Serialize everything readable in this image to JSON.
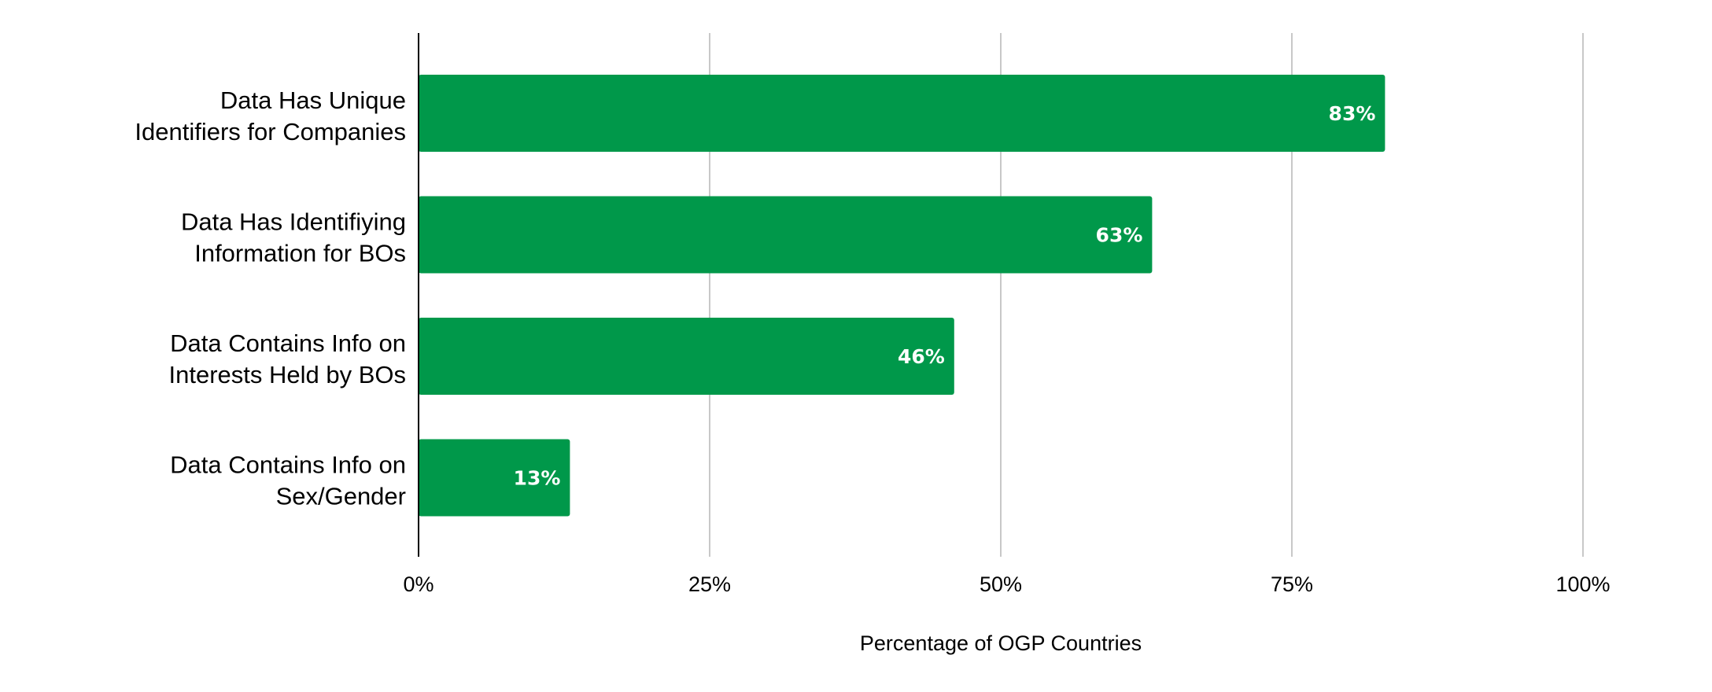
{
  "chart_data": {
    "type": "bar",
    "orientation": "horizontal",
    "categories": [
      [
        "Data Has Unique",
        "Identifiers for Companies"
      ],
      [
        "Data Has Identifiying",
        "Information for BOs"
      ],
      [
        "Data Contains Info on",
        "Interests Held by BOs"
      ],
      [
        "Data Contains Info on",
        "Sex/Gender"
      ]
    ],
    "values": [
      83,
      63,
      46,
      13
    ],
    "data_labels": [
      "83%",
      "63%",
      "46%",
      "13%"
    ],
    "xlim": [
      0,
      100
    ],
    "x_ticks": [
      0,
      25,
      50,
      75,
      100
    ],
    "x_tick_labels": [
      "0%",
      "25%",
      "50%",
      "75%",
      "100%"
    ],
    "xlabel": "Percentage of OGP Countries",
    "ylabel": "",
    "title": "",
    "grid": "vertical",
    "bar_color": "#00984a",
    "label_color": "#ffffff"
  }
}
